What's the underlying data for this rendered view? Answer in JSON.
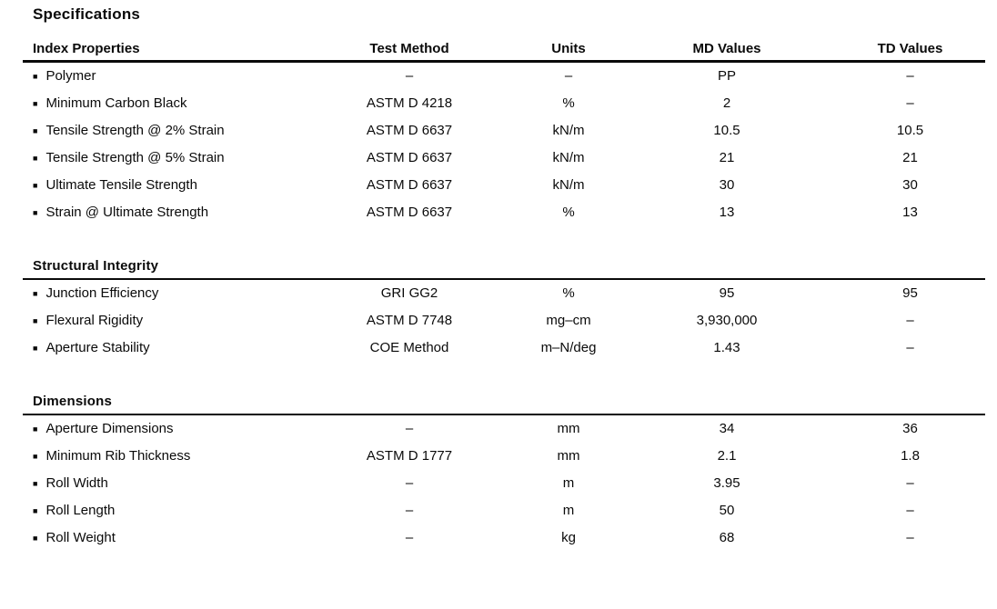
{
  "title": "Specifications",
  "icons": {
    "bullet": "■"
  },
  "columns": {
    "property": "Index Properties",
    "test_method": "Test Method",
    "units": "Units",
    "md": "MD Values",
    "td": "TD Values"
  },
  "sections": [
    {
      "heading": null,
      "rows": [
        {
          "property": "Polymer",
          "test_method": "–",
          "units": "–",
          "md": "PP",
          "td": "–"
        },
        {
          "property": "Minimum Carbon Black",
          "test_method": "ASTM D 4218",
          "units": "%",
          "md": "2",
          "td": "–"
        },
        {
          "property": "Tensile Strength @ 2% Strain",
          "test_method": "ASTM D 6637",
          "units": "kN/m",
          "md": "10.5",
          "td": "10.5"
        },
        {
          "property": "Tensile Strength @ 5% Strain",
          "test_method": "ASTM D 6637",
          "units": "kN/m",
          "md": "21",
          "td": "21"
        },
        {
          "property": "Ultimate Tensile Strength",
          "test_method": "ASTM D 6637",
          "units": "kN/m",
          "md": "30",
          "td": "30"
        },
        {
          "property": "Strain @ Ultimate Strength",
          "test_method": "ASTM D 6637",
          "units": "%",
          "md": "13",
          "td": "13"
        }
      ]
    },
    {
      "heading": "Structural Integrity",
      "rows": [
        {
          "property": "Junction Efficiency",
          "test_method": "GRI GG2",
          "units": "%",
          "md": "95",
          "td": "95"
        },
        {
          "property": "Flexural Rigidity",
          "test_method": "ASTM D 7748",
          "units": "mg–cm",
          "md": "3,930,000",
          "td": "–"
        },
        {
          "property": "Aperture Stability",
          "test_method": "COE Method",
          "units": "m–N/deg",
          "md": "1.43",
          "td": "–"
        }
      ]
    },
    {
      "heading": "Dimensions",
      "rows": [
        {
          "property": "Aperture Dimensions",
          "test_method": "–",
          "units": "mm",
          "md": "34",
          "td": "36"
        },
        {
          "property": "Minimum Rib Thickness",
          "test_method": "ASTM D 1777",
          "units": "mm",
          "md": "2.1",
          "td": "1.8"
        },
        {
          "property": "Roll Width",
          "test_method": "–",
          "units": "m",
          "md": "3.95",
          "td": "–"
        },
        {
          "property": "Roll Length",
          "test_method": "–",
          "units": "m",
          "md": "50",
          "td": "–"
        },
        {
          "property": "Roll Weight",
          "test_method": "–",
          "units": "kg",
          "md": "68",
          "td": "–"
        }
      ]
    }
  ]
}
